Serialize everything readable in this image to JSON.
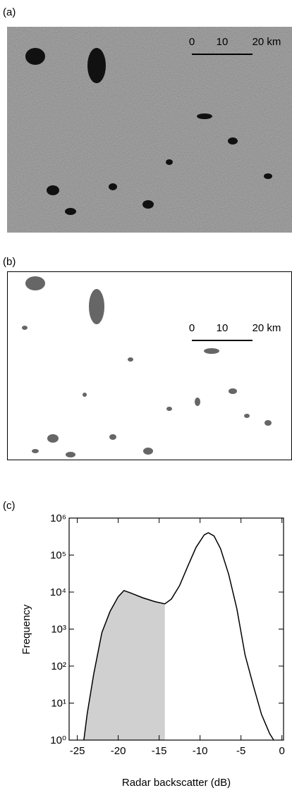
{
  "panels": {
    "a": {
      "label": "(a)",
      "scale_labels": [
        "0",
        "10",
        "20 km"
      ]
    },
    "b": {
      "label": "(b)",
      "scale_labels": [
        "0",
        "10",
        "20 km"
      ]
    }
  },
  "chart_data": {
    "type": "line",
    "panel_label": "(c)",
    "xlabel": "Radar backscatter (dB)",
    "ylabel": "Frequency",
    "x": [
      -24.2,
      -23.8,
      -23,
      -22,
      -21,
      -20,
      -19.3,
      -18.5,
      -17,
      -15.5,
      -14.3,
      -13.5,
      -12.5,
      -11.5,
      -10.5,
      -9.5,
      -9,
      -8.3,
      -7.5,
      -6.5,
      -5.5,
      -4.5,
      -3.5,
      -2.5,
      -1.5,
      -1
    ],
    "values": [
      1,
      5,
      60,
      800,
      3000,
      7500,
      11000,
      9500,
      7000,
      5500,
      4800,
      6500,
      15000,
      50000,
      160000,
      350000,
      400000,
      330000,
      150000,
      30000,
      3500,
      200,
      30,
      5,
      1.5,
      1
    ],
    "color": "#000000",
    "fill_color": "#d0d0d0",
    "shade_x_max": -14.3,
    "log_y": true,
    "xlim": [
      -26,
      0.2
    ],
    "xticks": [
      -25,
      -20,
      -15,
      -10,
      -5,
      0
    ],
    "ylim": [
      1,
      1000000
    ],
    "yticks": [
      {
        "value": 1,
        "label": "10⁰"
      },
      {
        "value": 10,
        "label": "10¹"
      },
      {
        "value": 100,
        "label": "10²"
      },
      {
        "value": 1000,
        "label": "10³"
      },
      {
        "value": 10000,
        "label": "10⁴"
      },
      {
        "value": 100000,
        "label": "10⁵"
      },
      {
        "value": 1000000,
        "label": "10⁶"
      }
    ]
  }
}
